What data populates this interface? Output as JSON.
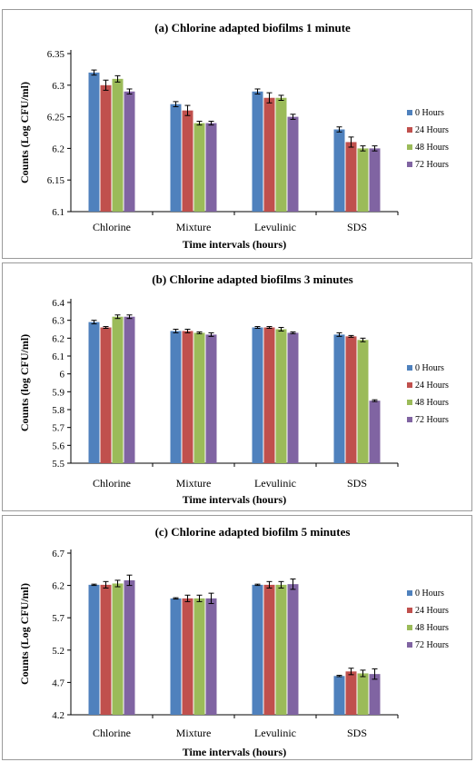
{
  "chart_data": [
    {
      "type": "bar",
      "title": "(a) Chlorine adapted biofilms 1 minute",
      "xlabel": "Time intervals (hours)",
      "ylabel": "Counts (Log CFU/ml)",
      "ylim": [
        6.1,
        6.35
      ],
      "yticks": [
        "6.1",
        "6.15",
        "6.2",
        "6.25",
        "6.3",
        "6.35"
      ],
      "categories": [
        "Chlorine",
        "Mixture",
        "Levulinic",
        "SDS"
      ],
      "series": [
        {
          "name": "0 Hours",
          "color": "#4f81bd",
          "values": [
            6.32,
            6.27,
            6.29,
            6.23
          ],
          "errors": [
            0.004,
            0.004,
            0.004,
            0.004
          ]
        },
        {
          "name": "24 Hours",
          "color": "#c0504d",
          "values": [
            6.3,
            6.26,
            6.28,
            6.21
          ],
          "errors": [
            0.008,
            0.008,
            0.008,
            0.008
          ]
        },
        {
          "name": "48 Hours",
          "color": "#9bbb59",
          "values": [
            6.31,
            6.24,
            6.28,
            6.2
          ],
          "errors": [
            0.005,
            0.003,
            0.004,
            0.004
          ]
        },
        {
          "name": "72 Hours",
          "color": "#8064a2",
          "values": [
            6.29,
            6.24,
            6.25,
            6.2
          ],
          "errors": [
            0.004,
            0.003,
            0.004,
            0.004
          ]
        }
      ],
      "legend": "right"
    },
    {
      "type": "bar",
      "title": "(b) Chlorine adapted biofilms 3 minutes",
      "xlabel": "Time intervals (hours)",
      "ylabel": "Counts (log CFU/ml)",
      "ylim": [
        5.5,
        6.4
      ],
      "yticks": [
        "5.5",
        "5.6",
        "5.7",
        "5.8",
        "5.9",
        "6",
        "6.1",
        "6.2",
        "6.3",
        "6.4"
      ],
      "categories": [
        "Chlorine",
        "Mixture",
        "Levulinic",
        "SDS"
      ],
      "series": [
        {
          "name": "0 Hours",
          "color": "#4f81bd",
          "values": [
            6.29,
            6.24,
            6.26,
            6.22
          ],
          "errors": [
            0.01,
            0.01,
            0.005,
            0.01
          ]
        },
        {
          "name": "24 Hours",
          "color": "#c0504d",
          "values": [
            6.26,
            6.24,
            6.26,
            6.21
          ],
          "errors": [
            0.005,
            0.01,
            0.005,
            0.005
          ]
        },
        {
          "name": "48 Hours",
          "color": "#9bbb59",
          "values": [
            6.32,
            6.23,
            6.25,
            6.19
          ],
          "errors": [
            0.01,
            0.005,
            0.01,
            0.01
          ]
        },
        {
          "name": "72 Hours",
          "color": "#8064a2",
          "values": [
            6.32,
            6.22,
            6.23,
            5.85
          ],
          "errors": [
            0.01,
            0.01,
            0.005,
            0.005
          ]
        }
      ],
      "legend": "right"
    },
    {
      "type": "bar",
      "title": "(c) Chlorine adapted biofilm 5 minutes",
      "xlabel": "Time intervals (hours)",
      "ylabel": "Counts (Log CFU/ml)",
      "ylim": [
        4.2,
        6.7
      ],
      "yticks": [
        "4.2",
        "4.7",
        "5.2",
        "5.7",
        "6.2",
        "6.7"
      ],
      "categories": [
        "Chlorine",
        "Mixture",
        "Levulinic",
        "SDS"
      ],
      "series": [
        {
          "name": "0 Hours",
          "color": "#4f81bd",
          "values": [
            6.21,
            6.0,
            6.21,
            4.8
          ],
          "errors": [
            0.01,
            0.01,
            0.01,
            0.01
          ]
        },
        {
          "name": "24 Hours",
          "color": "#c0504d",
          "values": [
            6.21,
            6.0,
            6.21,
            4.87
          ],
          "errors": [
            0.05,
            0.05,
            0.05,
            0.05
          ]
        },
        {
          "name": "48 Hours",
          "color": "#9bbb59",
          "values": [
            6.23,
            6.0,
            6.21,
            4.84
          ],
          "errors": [
            0.05,
            0.05,
            0.05,
            0.05
          ]
        },
        {
          "name": "72 Hours",
          "color": "#8064a2",
          "values": [
            6.28,
            6.0,
            6.22,
            4.83
          ],
          "errors": [
            0.08,
            0.08,
            0.08,
            0.08
          ]
        }
      ],
      "legend": "right"
    }
  ]
}
